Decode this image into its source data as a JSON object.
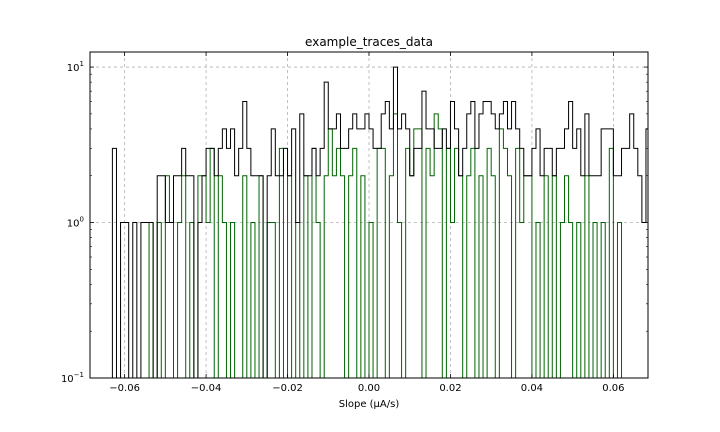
{
  "chart_data": {
    "type": "histogram",
    "title": "example_traces_data",
    "xlabel": "Slope (μA/s)",
    "ylabel": "",
    "yscale": "log",
    "xlim": [
      -0.0685,
      0.0685
    ],
    "ylim": [
      0.1,
      12.5
    ],
    "grid": true,
    "grid_style": "dashed",
    "x_ticks": [
      -0.06,
      -0.04,
      -0.02,
      0.0,
      0.02,
      0.04,
      0.06
    ],
    "x_tick_labels": [
      "−0.06",
      "−0.04",
      "−0.02",
      "0.00",
      "0.02",
      "0.04",
      "0.06"
    ],
    "y_ticks": [
      {
        "value": 0.1,
        "base": "10",
        "exp": "−1"
      },
      {
        "value": 1,
        "base": "10",
        "exp": "0"
      },
      {
        "value": 10,
        "base": "10",
        "exp": "1"
      }
    ],
    "bin_start": -0.063,
    "bin_width": 0.001,
    "series": [
      {
        "color": "#000000",
        "values": [
          3,
          0,
          1,
          1,
          0,
          1,
          0,
          1,
          1,
          1,
          0,
          2,
          2,
          1,
          1,
          2,
          2,
          3,
          2,
          2,
          0,
          1,
          2,
          3,
          3,
          2,
          3,
          4,
          3,
          4,
          2,
          3,
          6,
          3,
          2,
          2,
          2,
          0,
          2,
          4,
          2,
          2,
          3,
          2,
          4,
          1,
          5,
          2,
          2,
          3,
          2,
          3,
          8,
          4,
          4,
          5,
          3,
          3,
          4,
          5,
          4,
          4,
          5,
          4,
          3,
          3,
          5,
          6,
          4,
          10,
          4,
          5,
          4,
          2,
          3,
          3,
          7,
          4,
          4,
          3,
          3,
          4,
          3,
          6,
          4,
          2,
          3,
          5,
          6,
          3,
          5,
          6,
          6,
          5,
          4,
          5,
          6,
          4,
          6,
          4,
          3,
          2,
          2,
          3,
          4,
          2,
          3,
          3,
          2,
          3,
          3,
          4,
          6,
          3,
          4,
          2,
          5,
          2,
          2,
          2,
          4,
          4,
          4,
          2,
          2,
          3,
          3,
          5,
          3,
          2,
          1,
          4,
          1,
          3,
          3,
          3,
          3,
          2,
          3,
          3,
          2,
          1,
          1,
          1
        ]
      },
      {
        "color": "#006400",
        "values": [
          0,
          0,
          0,
          0,
          0,
          0,
          0,
          0,
          0,
          0,
          0,
          0,
          0,
          0,
          0,
          0,
          0,
          0,
          0,
          0,
          0,
          0,
          0,
          0,
          0,
          0,
          0,
          0,
          0,
          0,
          0,
          0,
          0,
          0,
          0,
          0,
          0,
          0,
          0,
          0,
          0,
          0,
          0,
          0,
          0,
          0,
          0,
          0,
          0,
          0,
          0,
          0,
          0,
          0,
          0,
          0,
          0,
          0,
          0,
          0,
          0,
          0,
          0,
          0,
          0,
          0,
          0,
          0,
          0,
          0,
          0,
          0,
          0,
          0,
          0,
          0,
          0,
          0,
          0,
          0,
          0,
          0,
          0,
          0,
          0,
          0,
          0,
          0,
          0,
          0,
          0,
          0,
          0,
          0,
          0,
          0,
          0,
          0,
          0,
          0,
          0,
          0,
          0,
          0,
          0,
          0,
          0,
          0,
          0,
          0,
          0,
          0,
          0,
          0,
          0,
          0,
          0,
          0,
          0,
          0,
          0,
          0,
          0,
          0,
          0,
          0,
          0,
          0,
          0,
          0,
          0,
          0,
          0,
          0,
          0,
          0,
          0,
          0,
          0,
          0,
          0,
          0,
          0,
          0
        ],
        "sparse_values": [
          [
            -0.054,
            1
          ],
          [
            -0.052,
            1
          ],
          [
            -0.05,
            2
          ],
          [
            -0.049,
            1
          ],
          [
            -0.047,
            1
          ],
          [
            -0.046,
            2
          ],
          [
            -0.044,
            1
          ],
          [
            -0.042,
            2
          ],
          [
            -0.041,
            2
          ],
          [
            -0.04,
            1
          ],
          [
            -0.039,
            3
          ],
          [
            -0.037,
            2
          ],
          [
            -0.036,
            1
          ],
          [
            -0.034,
            1
          ],
          [
            -0.031,
            2
          ],
          [
            -0.029,
            1
          ],
          [
            -0.027,
            2
          ],
          [
            -0.025,
            1
          ],
          [
            -0.024,
            1
          ],
          [
            -0.022,
            3
          ],
          [
            -0.02,
            2
          ],
          [
            -0.018,
            1
          ],
          [
            -0.016,
            2
          ],
          [
            -0.014,
            3
          ],
          [
            -0.013,
            1
          ],
          [
            -0.011,
            2
          ],
          [
            -0.01,
            4
          ],
          [
            -0.009,
            2
          ],
          [
            -0.008,
            3
          ],
          [
            -0.007,
            2
          ],
          [
            -0.005,
            2
          ],
          [
            -0.004,
            3
          ],
          [
            -0.002,
            2
          ],
          [
            0.0,
            1
          ],
          [
            0.002,
            3
          ],
          [
            0.003,
            3
          ],
          [
            0.005,
            2
          ],
          [
            0.006,
            5
          ],
          [
            0.007,
            1
          ],
          [
            0.009,
            3
          ],
          [
            0.01,
            2
          ],
          [
            0.011,
            4
          ],
          [
            0.012,
            4
          ],
          [
            0.014,
            3
          ],
          [
            0.015,
            2
          ],
          [
            0.016,
            5
          ],
          [
            0.017,
            4
          ],
          [
            0.019,
            3
          ],
          [
            0.02,
            1
          ],
          [
            0.021,
            3
          ],
          [
            0.022,
            2
          ],
          [
            0.024,
            2
          ],
          [
            0.025,
            3
          ],
          [
            0.027,
            2
          ],
          [
            0.029,
            3
          ],
          [
            0.03,
            2
          ],
          [
            0.032,
            4
          ],
          [
            0.033,
            3
          ],
          [
            0.034,
            2
          ],
          [
            0.036,
            3
          ],
          [
            0.037,
            1
          ],
          [
            0.038,
            2
          ],
          [
            0.039,
            2
          ],
          [
            0.041,
            1
          ],
          [
            0.043,
            2
          ],
          [
            0.045,
            2
          ],
          [
            0.047,
            1
          ],
          [
            0.048,
            2
          ],
          [
            0.049,
            1
          ],
          [
            0.051,
            1
          ],
          [
            0.053,
            2
          ],
          [
            0.055,
            1
          ],
          [
            0.057,
            1
          ],
          [
            0.059,
            3
          ],
          [
            0.061,
            1
          ]
        ]
      }
    ]
  }
}
